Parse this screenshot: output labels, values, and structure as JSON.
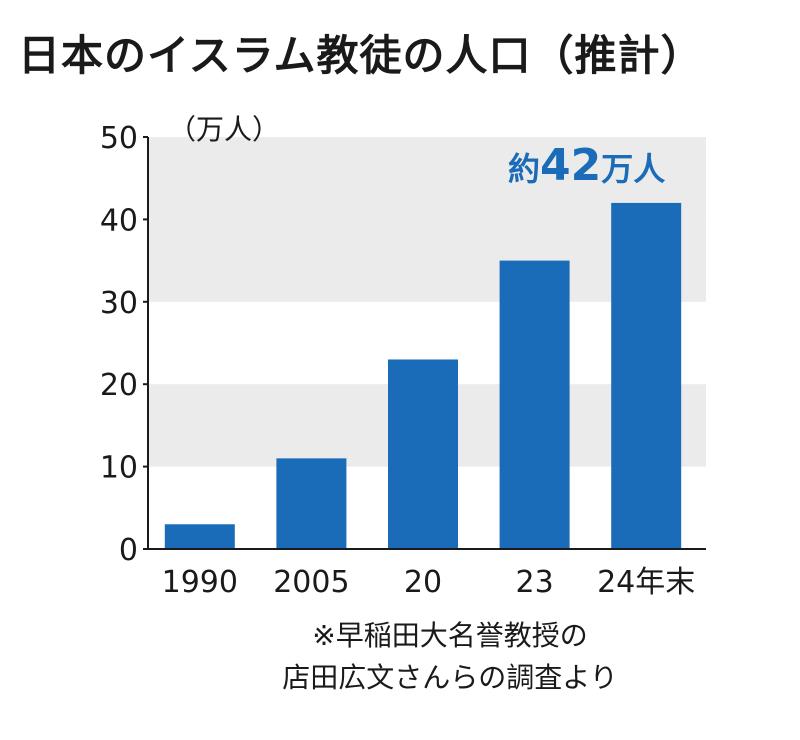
{
  "title": "日本のイスラム教徒の人口（推計）",
  "chart_data": {
    "type": "bar",
    "title": "日本のイスラム教徒の人口（推計）",
    "unit_label": "（万人）",
    "categories": [
      "1990",
      "2005",
      "20",
      "23",
      "24年末"
    ],
    "values": [
      3,
      11,
      23,
      35,
      42
    ],
    "ylim": [
      0,
      50
    ],
    "yticks": [
      0,
      10,
      20,
      30,
      40,
      50
    ],
    "grid": "alternating bands",
    "bar_color": "#1a6bb8",
    "band_color": "#ebebeb",
    "annotation": {
      "prefix": "約",
      "value": "42",
      "suffix": "万人",
      "color": "#1a6bb8"
    }
  },
  "note": {
    "line1": "※早稲田大名誉教授の",
    "line2": "店田広文さんらの調査より"
  }
}
